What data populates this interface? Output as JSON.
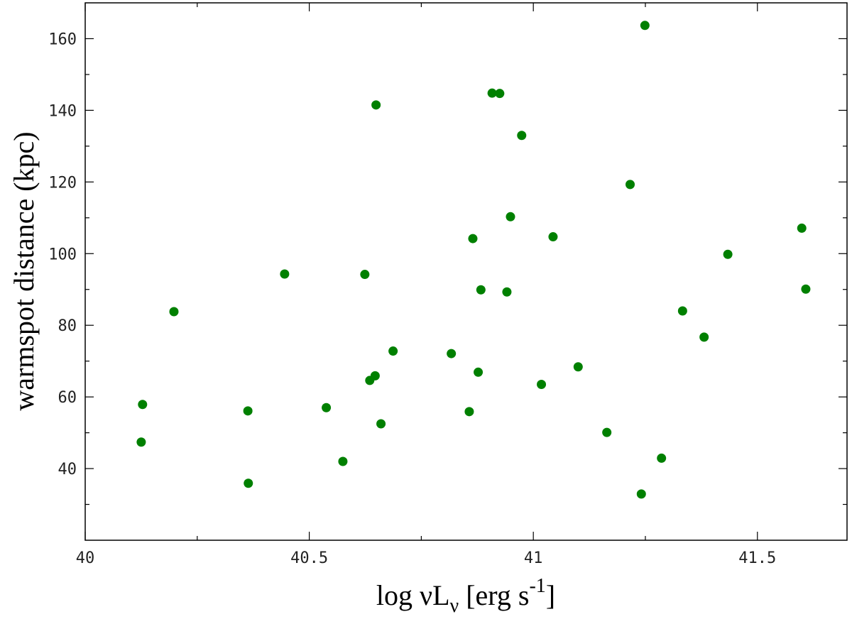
{
  "chart_data": {
    "type": "scatter",
    "marker_color": "#008000",
    "xlabel": {
      "main": "log νL",
      "sub": "ν",
      "bracket_open": " [erg s",
      "sup": "-1",
      "bracket_close": "]"
    },
    "ylabel": "warmspot distance (kpc)",
    "xlim": [
      40.0,
      41.7
    ],
    "ylim": [
      20,
      170
    ],
    "x_ticks": [
      40,
      40.5,
      41,
      41.5
    ],
    "x_tick_labels": [
      "40",
      "40.5",
      "41",
      "41.5"
    ],
    "x_minor_ticks": [
      40.25,
      40.75,
      41.25
    ],
    "y_ticks": [
      40,
      60,
      80,
      100,
      120,
      140,
      160
    ],
    "y_tick_labels": [
      "40",
      "60",
      "80",
      "100",
      "120",
      "140",
      "160"
    ],
    "grid": false,
    "points": [
      {
        "x": 40.125,
        "y": 47.4
      },
      {
        "x": 40.128,
        "y": 57.9
      },
      {
        "x": 40.198,
        "y": 83.8
      },
      {
        "x": 40.363,
        "y": 56.1
      },
      {
        "x": 40.364,
        "y": 35.9
      },
      {
        "x": 40.445,
        "y": 94.3
      },
      {
        "x": 40.538,
        "y": 57.0
      },
      {
        "x": 40.575,
        "y": 42.0
      },
      {
        "x": 40.624,
        "y": 94.2
      },
      {
        "x": 40.635,
        "y": 64.6
      },
      {
        "x": 40.647,
        "y": 65.9
      },
      {
        "x": 40.649,
        "y": 141.5
      },
      {
        "x": 40.66,
        "y": 52.5
      },
      {
        "x": 40.687,
        "y": 72.8
      },
      {
        "x": 40.817,
        "y": 72.1
      },
      {
        "x": 40.857,
        "y": 55.9
      },
      {
        "x": 40.865,
        "y": 104.2
      },
      {
        "x": 40.877,
        "y": 66.9
      },
      {
        "x": 40.883,
        "y": 89.9
      },
      {
        "x": 40.908,
        "y": 144.8
      },
      {
        "x": 40.925,
        "y": 144.7
      },
      {
        "x": 40.941,
        "y": 89.3
      },
      {
        "x": 40.949,
        "y": 110.3
      },
      {
        "x": 40.974,
        "y": 133.0
      },
      {
        "x": 41.018,
        "y": 63.5
      },
      {
        "x": 41.044,
        "y": 104.7
      },
      {
        "x": 41.1,
        "y": 68.4
      },
      {
        "x": 41.164,
        "y": 50.1
      },
      {
        "x": 41.216,
        "y": 119.3
      },
      {
        "x": 41.241,
        "y": 32.9
      },
      {
        "x": 41.249,
        "y": 163.7
      },
      {
        "x": 41.286,
        "y": 42.9
      },
      {
        "x": 41.333,
        "y": 84.0
      },
      {
        "x": 41.381,
        "y": 76.7
      },
      {
        "x": 41.434,
        "y": 99.8
      },
      {
        "x": 41.599,
        "y": 107.1
      },
      {
        "x": 41.608,
        "y": 90.1
      }
    ]
  }
}
